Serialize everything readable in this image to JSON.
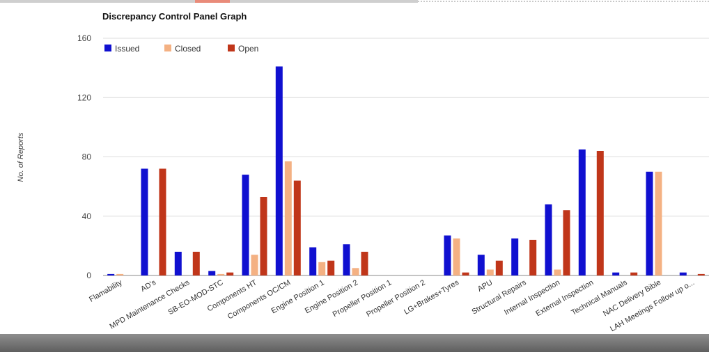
{
  "chart_data": {
    "type": "bar",
    "title": "Discrepancy Control Panel Graph",
    "xlabel": "",
    "ylabel": "No. of Reports",
    "ylim": [
      0,
      160
    ],
    "yticks": [
      0,
      40,
      80,
      120,
      160
    ],
    "grid": true,
    "legend": "top-left",
    "categories": [
      "Flamability",
      "AD's",
      "MPD Maintenance Checks",
      "SB-EO-MOD-STC",
      "Components HT",
      "Components OC/CM",
      "Engine Position 1",
      "Engine Position 2",
      "Propeller Position 1",
      "Propeller Position 2",
      "LG+Brakes+Tyres",
      "APU",
      "Structural Repairs",
      "Internal Inspection",
      "External Inspection",
      "Technical Manuals",
      "NAC Delivery Bible",
      "LAH Meetings Follow up o..."
    ],
    "series": [
      {
        "name": "Issued",
        "color": "#1010d0",
        "values": [
          1,
          72,
          16,
          3,
          68,
          141,
          19,
          21,
          0,
          0,
          27,
          14,
          25,
          48,
          85,
          2,
          70,
          2
        ]
      },
      {
        "name": "Closed",
        "color": "#f4b183",
        "values": [
          1,
          0,
          0,
          1,
          14,
          77,
          9,
          5,
          0,
          0,
          25,
          4,
          0,
          4,
          0,
          0,
          70,
          0
        ]
      },
      {
        "name": "Open",
        "color": "#c0361a",
        "values": [
          0,
          72,
          16,
          2,
          53,
          64,
          10,
          16,
          0,
          0,
          2,
          10,
          24,
          44,
          84,
          2,
          0,
          1
        ]
      }
    ]
  }
}
